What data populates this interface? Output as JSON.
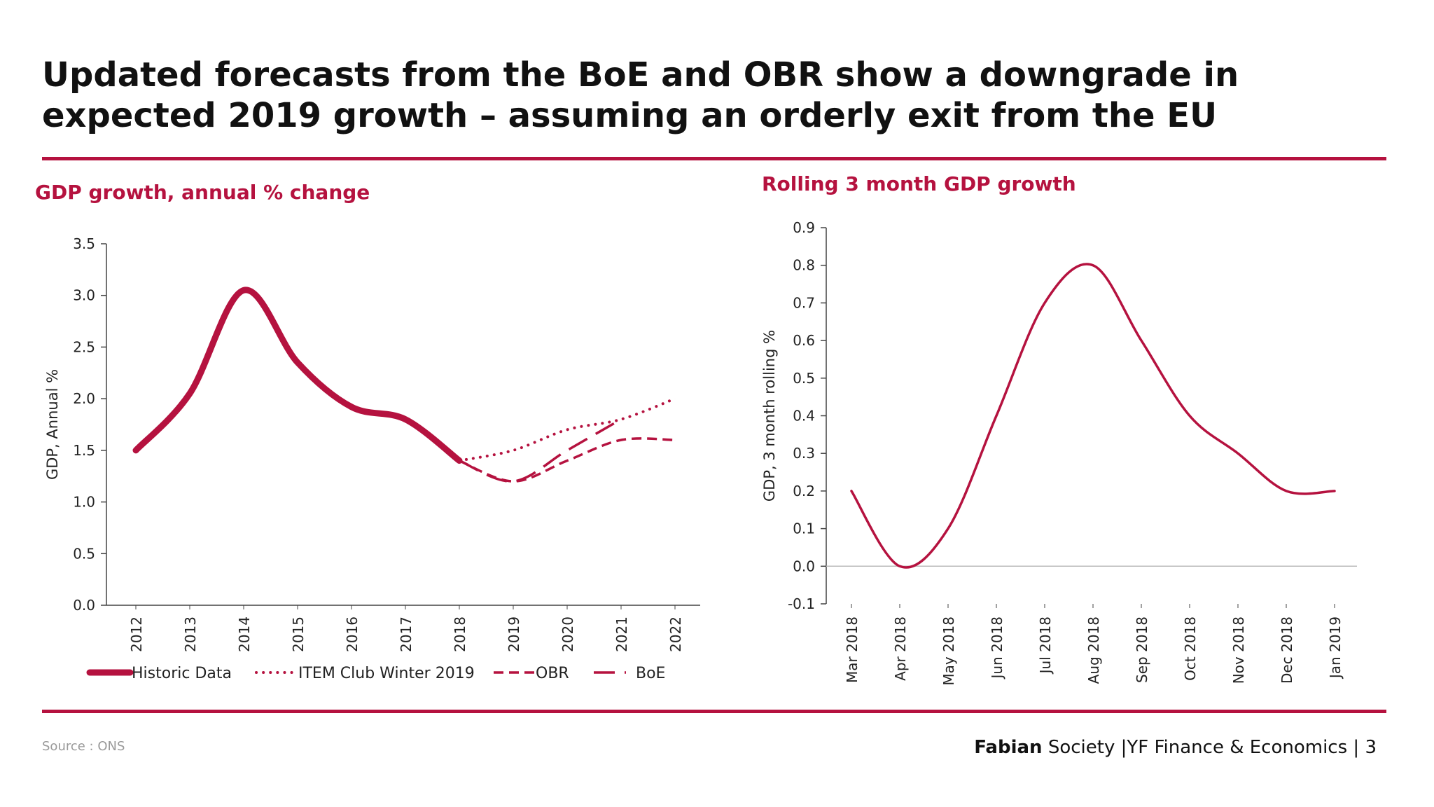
{
  "slide": {
    "title": "Updated forecasts from the BoE and OBR show a downgrade in expected 2019 growth – assuming an orderly exit from the EU",
    "source": "Source : ONS",
    "footer_brand_bold": "Fabian",
    "footer_brand_rest": " Society",
    "footer_division": " |YF Finance & Economics",
    "footer_sep": " | ",
    "page_number": "3",
    "accent_color": "#b5123f"
  },
  "chart_data": [
    {
      "type": "line",
      "title": "GDP growth, annual % change",
      "xlabel": "",
      "ylabel": "GDP, Annual %",
      "ylim": [
        0,
        3.5
      ],
      "yticks": [
        0.0,
        0.5,
        1.0,
        1.5,
        2.0,
        2.5,
        3.0,
        3.5
      ],
      "ytick_labels": [
        "0.0",
        "0.5",
        "1.0",
        "1.5",
        "2.0",
        "2.5",
        "3.0",
        "3.5"
      ],
      "categories": [
        "2012",
        "2013",
        "2014",
        "2015",
        "2016",
        "2017",
        "2018",
        "2019",
        "2020",
        "2021",
        "2022"
      ],
      "legend_position": "bottom",
      "series": [
        {
          "name": "Historic Data",
          "style": "thick-solid",
          "values": [
            1.5,
            2.05,
            3.05,
            2.35,
            1.92,
            1.8,
            1.4,
            null,
            null,
            null,
            null
          ]
        },
        {
          "name": "ITEM Club Winter 2019",
          "style": "dotted",
          "values": [
            null,
            null,
            null,
            null,
            null,
            null,
            1.4,
            1.5,
            1.7,
            1.8,
            2.0
          ]
        },
        {
          "name": "OBR",
          "style": "dashed",
          "values": [
            null,
            null,
            null,
            null,
            null,
            null,
            1.4,
            1.2,
            1.4,
            1.6,
            1.6
          ]
        },
        {
          "name": "BoE",
          "style": "long-dash",
          "values": [
            null,
            null,
            null,
            null,
            null,
            null,
            1.4,
            1.2,
            1.5,
            1.8,
            null
          ]
        }
      ]
    },
    {
      "type": "line",
      "title": "Rolling 3 month GDP growth",
      "xlabel": "",
      "ylabel": "GDP, 3 month rolling %",
      "ylim": [
        -0.1,
        0.9
      ],
      "yticks": [
        -0.1,
        0.0,
        0.1,
        0.2,
        0.3,
        0.4,
        0.5,
        0.6,
        0.7,
        0.8,
        0.9
      ],
      "ytick_labels": [
        "-0.1",
        "0.0",
        "0.1",
        "0.2",
        "0.3",
        "0.4",
        "0.5",
        "0.6",
        "0.7",
        "0.8",
        "0.9"
      ],
      "categories": [
        "Mar 2018",
        "Apr 2018",
        "May 2018",
        "Jun 2018",
        "Jul 2018",
        "Aug 2018",
        "Sep 2018",
        "Oct 2018",
        "Nov 2018",
        "Dec 2018",
        "Jan 2019"
      ],
      "series": [
        {
          "name": "Rolling 3 month GDP growth",
          "style": "solid",
          "values": [
            0.2,
            0.0,
            0.1,
            0.4,
            0.7,
            0.8,
            0.6,
            0.4,
            0.3,
            0.2,
            0.2
          ]
        }
      ]
    }
  ]
}
